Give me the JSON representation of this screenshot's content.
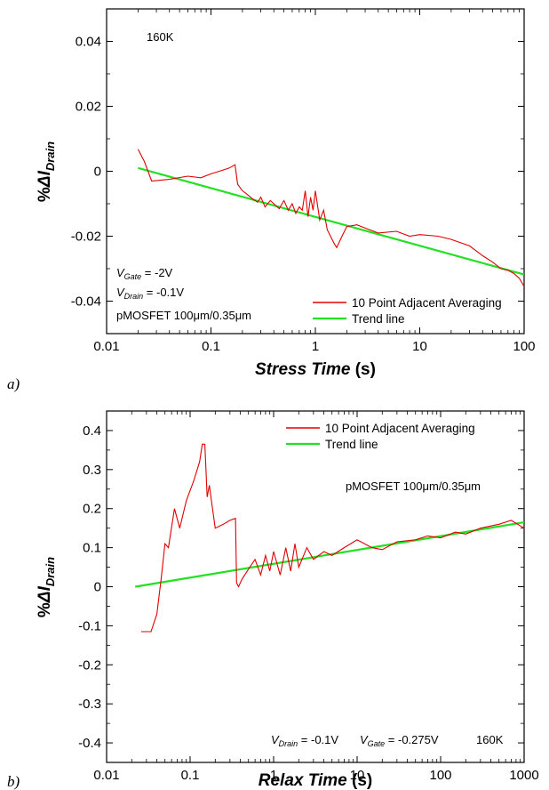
{
  "chart_data": [
    {
      "type": "line",
      "panel_label": "a)",
      "xlabel": {
        "main": "Stress Time",
        "unit": " (s)"
      },
      "ylabel": {
        "prefix": "%",
        "delta": "Δ",
        "i": "I",
        "sub": "Drain"
      },
      "xscale": "log",
      "xlim": [
        0.01,
        100
      ],
      "ylim": [
        -0.05,
        0.05
      ],
      "xticks": [
        {
          "value": 0.01,
          "label": "0.01"
        },
        {
          "value": 0.1,
          "label": "0.1"
        },
        {
          "value": 1,
          "label": "1"
        },
        {
          "value": 10,
          "label": "10"
        },
        {
          "value": 100,
          "label": "100"
        }
      ],
      "yticks": [
        {
          "value": -0.04,
          "label": "-0.04"
        },
        {
          "value": -0.02,
          "label": "-0.02"
        },
        {
          "value": 0,
          "label": "0"
        },
        {
          "value": 0.02,
          "label": "0.02"
        },
        {
          "value": 0.04,
          "label": "0.04"
        }
      ],
      "grid": false,
      "legend_position": "bottom-right",
      "annotations": {
        "temperature": "160K",
        "vgate": {
          "v": "V",
          "sub": "Gate",
          "value": " = -2V"
        },
        "vdrain": {
          "v": "V",
          "sub": "Drain",
          "value": " = -0.1V"
        },
        "device": "pMOSFET 100μm/0.35μm"
      },
      "series": [
        {
          "name": "10 Point Adjacent Averaging",
          "color": "#e00000",
          "points": [
            [
              0.02,
              0.0068
            ],
            [
              0.023,
              0.003
            ],
            [
              0.027,
              -0.003
            ],
            [
              0.04,
              -0.0025
            ],
            [
              0.06,
              -0.0015
            ],
            [
              0.08,
              -0.002
            ],
            [
              0.1,
              -0.0008
            ],
            [
              0.12,
              0.0
            ],
            [
              0.15,
              0.001
            ],
            [
              0.17,
              0.002
            ],
            [
              0.18,
              -0.004
            ],
            [
              0.2,
              -0.006
            ],
            [
              0.22,
              -0.007
            ],
            [
              0.25,
              -0.0085
            ],
            [
              0.28,
              -0.0095
            ],
            [
              0.3,
              -0.008
            ],
            [
              0.33,
              -0.011
            ],
            [
              0.37,
              -0.009
            ],
            [
              0.4,
              -0.01
            ],
            [
              0.45,
              -0.0115
            ],
            [
              0.5,
              -0.009
            ],
            [
              0.55,
              -0.012
            ],
            [
              0.6,
              -0.01
            ],
            [
              0.65,
              -0.013
            ],
            [
              0.7,
              -0.011
            ],
            [
              0.75,
              -0.012
            ],
            [
              0.8,
              -0.006
            ],
            [
              0.85,
              -0.014
            ],
            [
              0.9,
              -0.008
            ],
            [
              0.95,
              -0.012
            ],
            [
              1.0,
              -0.006
            ],
            [
              1.1,
              -0.015
            ],
            [
              1.2,
              -0.012
            ],
            [
              1.3,
              -0.018
            ],
            [
              1.5,
              -0.022
            ],
            [
              1.6,
              -0.0235
            ],
            [
              1.8,
              -0.02
            ],
            [
              2.0,
              -0.017
            ],
            [
              2.5,
              -0.0165
            ],
            [
              3.0,
              -0.0175
            ],
            [
              4.0,
              -0.019
            ],
            [
              6.0,
              -0.0185
            ],
            [
              8.0,
              -0.02
            ],
            [
              10,
              -0.0195
            ],
            [
              15,
              -0.02
            ],
            [
              20,
              -0.021
            ],
            [
              30,
              -0.023
            ],
            [
              40,
              -0.026
            ],
            [
              50,
              -0.028
            ],
            [
              60,
              -0.03
            ],
            [
              70,
              -0.0305
            ],
            [
              80,
              -0.0315
            ],
            [
              90,
              -0.033
            ],
            [
              100,
              -0.0355
            ]
          ]
        },
        {
          "name": "Trend line",
          "color": "#22e022",
          "points": [
            [
              0.02,
              0.001
            ],
            [
              100,
              -0.0318
            ]
          ]
        }
      ]
    },
    {
      "type": "line",
      "panel_label": "b)",
      "xlabel": {
        "main": "Relax Time",
        "unit": " (s)"
      },
      "ylabel": {
        "prefix": "%",
        "delta": "Δ",
        "i": "I",
        "sub": "Drain"
      },
      "xscale": "log",
      "xlim": [
        0.01,
        1000
      ],
      "ylim": [
        -0.45,
        0.45
      ],
      "xticks": [
        {
          "value": 0.01,
          "label": "0.01"
        },
        {
          "value": 0.1,
          "label": "0.1"
        },
        {
          "value": 1,
          "label": "1"
        },
        {
          "value": 10,
          "label": "10"
        },
        {
          "value": 100,
          "label": "100"
        },
        {
          "value": 1000,
          "label": "1000"
        }
      ],
      "yticks": [
        {
          "value": -0.4,
          "label": "-0.4"
        },
        {
          "value": -0.3,
          "label": "-0.3"
        },
        {
          "value": -0.2,
          "label": "-0.2"
        },
        {
          "value": -0.1,
          "label": "-0.1"
        },
        {
          "value": 0,
          "label": "0"
        },
        {
          "value": 0.1,
          "label": "0.1"
        },
        {
          "value": 0.2,
          "label": "0.2"
        },
        {
          "value": 0.3,
          "label": "0.3"
        },
        {
          "value": 0.4,
          "label": "0.4"
        }
      ],
      "grid": false,
      "legend_position": "top-right",
      "annotations": {
        "device": "pMOSFET 100μm/0.35μm",
        "vdrain": {
          "v": "V",
          "sub": "Drain",
          "value": " = -0.1V"
        },
        "vgate": {
          "v": "V",
          "sub": "Gate",
          "value": " = -0.275V"
        },
        "temperature": "160K"
      },
      "series": [
        {
          "name": "10 Point Adjacent Averaging",
          "color": "#e00000",
          "points": [
            [
              0.026,
              -0.115
            ],
            [
              0.034,
              -0.115
            ],
            [
              0.04,
              -0.07
            ],
            [
              0.045,
              0.02
            ],
            [
              0.05,
              0.11
            ],
            [
              0.055,
              0.1
            ],
            [
              0.065,
              0.2
            ],
            [
              0.075,
              0.15
            ],
            [
              0.09,
              0.22
            ],
            [
              0.11,
              0.27
            ],
            [
              0.13,
              0.32
            ],
            [
              0.14,
              0.365
            ],
            [
              0.15,
              0.365
            ],
            [
              0.16,
              0.23
            ],
            [
              0.17,
              0.26
            ],
            [
              0.18,
              0.22
            ],
            [
              0.2,
              0.15
            ],
            [
              0.25,
              0.16
            ],
            [
              0.3,
              0.17
            ],
            [
              0.35,
              0.175
            ],
            [
              0.36,
              0.01
            ],
            [
              0.38,
              0.0
            ],
            [
              0.42,
              0.02
            ],
            [
              0.5,
              0.045
            ],
            [
              0.6,
              0.07
            ],
            [
              0.7,
              0.03
            ],
            [
              0.8,
              0.08
            ],
            [
              0.9,
              0.04
            ],
            [
              1.0,
              0.09
            ],
            [
              1.2,
              0.03
            ],
            [
              1.4,
              0.1
            ],
            [
              1.6,
              0.04
            ],
            [
              1.8,
              0.11
            ],
            [
              2.0,
              0.05
            ],
            [
              2.5,
              0.1
            ],
            [
              3.0,
              0.07
            ],
            [
              4.0,
              0.09
            ],
            [
              5.0,
              0.08
            ],
            [
              7.0,
              0.1
            ],
            [
              10,
              0.12
            ],
            [
              15,
              0.1
            ],
            [
              20,
              0.095
            ],
            [
              30,
              0.115
            ],
            [
              50,
              0.12
            ],
            [
              70,
              0.13
            ],
            [
              100,
              0.125
            ],
            [
              150,
              0.14
            ],
            [
              200,
              0.135
            ],
            [
              300,
              0.15
            ],
            [
              500,
              0.16
            ],
            [
              700,
              0.17
            ],
            [
              1000,
              0.15
            ]
          ]
        },
        {
          "name": "Trend line",
          "color": "#22e022",
          "points": [
            [
              0.022,
              0.0
            ],
            [
              1000,
              0.165
            ]
          ]
        }
      ]
    }
  ]
}
